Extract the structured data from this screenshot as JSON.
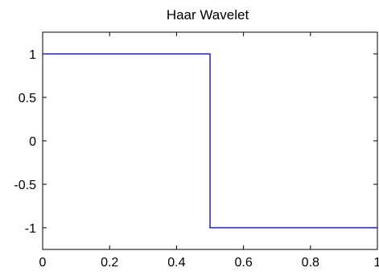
{
  "chart_data": {
    "type": "line",
    "title": "Haar Wavelet",
    "xlabel": "",
    "ylabel": "",
    "xlim": [
      0,
      1
    ],
    "ylim": [
      -1.25,
      1.25
    ],
    "grid": false,
    "x_ticks": [
      0,
      0.2,
      0.4,
      0.6,
      0.8,
      1
    ],
    "x_tick_labels": [
      "0",
      "0.2",
      "0.4",
      "0.6",
      "0.8",
      "1"
    ],
    "y_ticks": [
      1,
      0.5,
      0,
      -0.5,
      -1
    ],
    "y_tick_labels": [
      "1",
      "0.5",
      "0",
      "-0.5",
      "-1"
    ],
    "series": [
      {
        "color": "#2020c0",
        "x": [
          0,
          0.5,
          0.5,
          1
        ],
        "y": [
          1,
          1,
          -1,
          -1
        ]
      }
    ]
  }
}
